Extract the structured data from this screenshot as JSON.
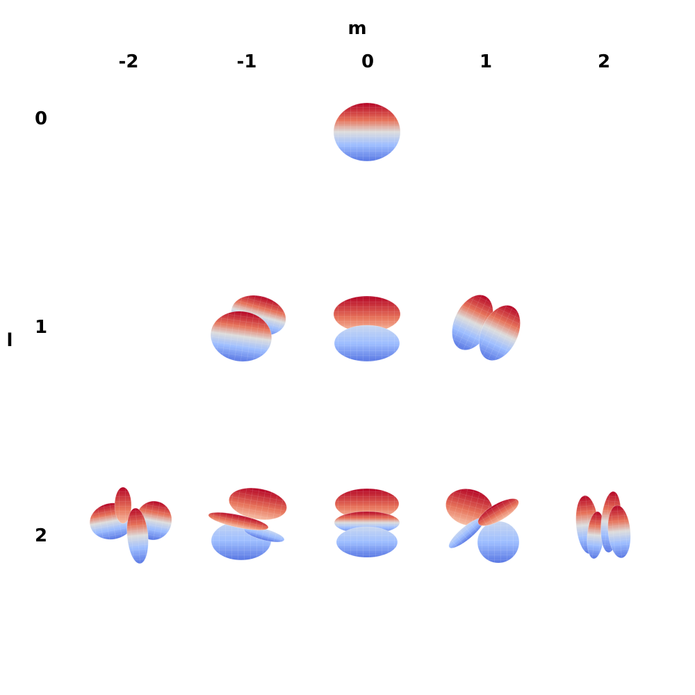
{
  "axis_labels": {
    "x": "m",
    "y": "l"
  },
  "m_values": [
    "-2",
    "-1",
    "0",
    "1",
    "2"
  ],
  "l_values": [
    "0",
    "1",
    "2"
  ],
  "colors": {
    "positive": "#b40426",
    "negative": "#3b4cc0",
    "neutral": "#dddddd"
  },
  "cells": [
    {
      "l": 0,
      "m": 0,
      "shape": "sphere"
    },
    {
      "l": 1,
      "m": -1,
      "shape": "two-lobes-tilted-left"
    },
    {
      "l": 1,
      "m": 0,
      "shape": "two-lobes-vertical"
    },
    {
      "l": 1,
      "m": 1,
      "shape": "two-lobes-tilted-right"
    },
    {
      "l": 2,
      "m": -2,
      "shape": "four-lobes-cross"
    },
    {
      "l": 2,
      "m": -1,
      "shape": "four-lobes-tilted-left"
    },
    {
      "l": 2,
      "m": 0,
      "shape": "dz2-like"
    },
    {
      "l": 2,
      "m": 1,
      "shape": "four-lobes-tilted-right"
    },
    {
      "l": 2,
      "m": 2,
      "shape": "four-lobes-narrow"
    }
  ]
}
